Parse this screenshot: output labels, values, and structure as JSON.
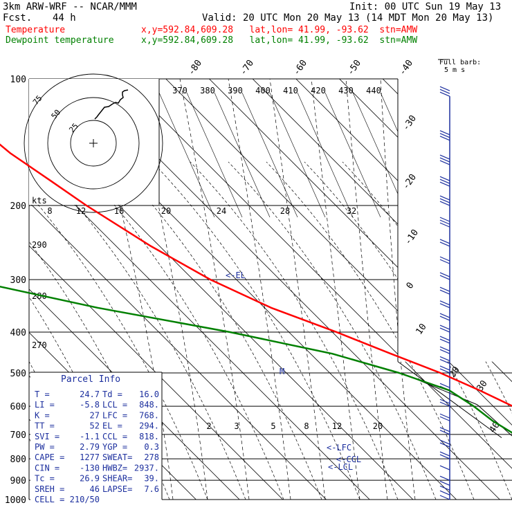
{
  "header": {
    "model": "3km ARW-WRF -- NCAR/MMM",
    "init": "Init: 00 UTC Sun 19 May 13",
    "fcst_label": "Fcst.",
    "fcst_value": "44 h",
    "valid": "Valid: 20 UTC Mon 20 May 13 (14 MDT Mon 20 May 13)",
    "temp_label": "Temperature",
    "temp_info": "x,y=592.84,609.28   lat,lon= 41.99, -93.62  stn=AMW",
    "dew_label": "Dewpoint temperature",
    "dew_info": "x,y=592.84,609.28   lat,lon= 41.99, -93.62  stn=AMW"
  },
  "colors": {
    "temperature": "#ff0000",
    "dewpoint": "#008000",
    "header_red": "#ff0000",
    "header_green": "#008000",
    "parcel": "#1c2f9e",
    "barbs": "#1c2f9e",
    "grid": "#000000"
  },
  "barb_title": "Full barb:",
  "barb_unit": "5 m s",
  "parcel_info": {
    "title": "Parcel Info",
    "rows": [
      [
        "T   =",
        "24.7",
        "Td =",
        "16.0"
      ],
      [
        "LI  =",
        "-5.8",
        "LCL =",
        "848."
      ],
      [
        "K   =",
        "27",
        "LFC =",
        "768."
      ],
      [
        "TT  =",
        "52",
        "EL  =",
        "294."
      ],
      [
        "SVI =",
        "-1.1",
        "CCL =",
        "818."
      ],
      [
        "PW  =",
        "2.79",
        "YGP =",
        "0.3"
      ],
      [
        "CAPE =",
        "1277",
        "SWEAT=",
        "278"
      ],
      [
        "CIN  =",
        "-130",
        "HWBZ=",
        "2937."
      ],
      [
        "Tc   =",
        "26.9",
        "SHEAR=",
        "39."
      ],
      [
        "SREH =",
        "46",
        "LAPSE=",
        "7.6"
      ],
      [
        "CELL =",
        "210/50",
        "",
        ""
      ]
    ]
  },
  "markers": {
    "el": "<-EL",
    "lfc": "<-LFC",
    "ccl": "<-CCL",
    "lcl": "<-LCL",
    "m": "M"
  },
  "hodograph": {
    "unit": "kts",
    "rings": [
      "25",
      "50",
      "75"
    ]
  },
  "chart_data": {
    "type": "line",
    "xlabel": "",
    "ylabel": "",
    "pressure_ticks": [
      100,
      200,
      300,
      400,
      500,
      600,
      700,
      800,
      900,
      1000
    ],
    "pressure_labels": [
      "100",
      "200",
      "300",
      "400",
      "500",
      "600",
      "700",
      "800",
      "900",
      "1000"
    ],
    "isotherm_labels_top": [
      "-80",
      "-70",
      "-60",
      "-50",
      "-40"
    ],
    "isotherm_labels_right": [
      "-30",
      "-20",
      "-10",
      "0",
      "10",
      "20",
      "30",
      "40"
    ],
    "theta_e_labels": [
      "370",
      "380",
      "390",
      "400",
      "410",
      "420",
      "430",
      "440"
    ],
    "dry_adiabat_labels": [
      "290",
      "280",
      "270"
    ],
    "mixing_ratio_labels_upper": [
      "8",
      "12",
      "16",
      "20",
      "24",
      "28",
      "32"
    ],
    "mixing_ratio_labels_lower": [
      "2",
      "3",
      "5",
      "8",
      "12",
      "20"
    ],
    "series": [
      {
        "name": "Temperature",
        "pressure": [
          100,
          125,
          150,
          175,
          200,
          250,
          300,
          350,
          400,
          450,
          500,
          550,
          600,
          650,
          700,
          750,
          800,
          850,
          900,
          960
        ],
        "temp": [
          -66.5,
          -64.5,
          -63.0,
          -60.0,
          -57.5,
          -52.0,
          -46.0,
          -38.5,
          -29.0,
          -21.5,
          -14.5,
          -9.5,
          -5.5,
          -1.5,
          2.5,
          7.0,
          11.5,
          15.5,
          19.5,
          25.0
        ]
      },
      {
        "name": "Dewpoint temperature",
        "pressure": [
          100,
          125,
          150,
          175,
          200,
          220,
          250,
          300,
          350,
          400,
          450,
          500,
          550,
          600,
          650,
          700,
          750,
          800,
          850,
          880,
          900,
          930
        ],
        "temp": [
          -100.0,
          -100.0,
          -103.5,
          -104.0,
          -101.5,
          -99.5,
          -100.0,
          -102.0,
          -78.5,
          -53.5,
          -35.0,
          -24.0,
          -16.5,
          -14.5,
          -13.5,
          -11.5,
          -6.0,
          4.0,
          12.0,
          15.5,
          16.0,
          17.0
        ]
      }
    ],
    "hodograph_trace_uv": [
      [
        0,
        0
      ],
      [
        3,
        3
      ],
      [
        6,
        7
      ],
      [
        10,
        12
      ],
      [
        14,
        17
      ],
      [
        20,
        18
      ],
      [
        26,
        22
      ],
      [
        30,
        24
      ],
      [
        34,
        23
      ],
      [
        37,
        28
      ],
      [
        41,
        31
      ],
      [
        40,
        35
      ],
      [
        40,
        39
      ],
      [
        43,
        41
      ],
      [
        48,
        42
      ]
    ],
    "wind_barbs_pressure": [
      110,
      140,
      160,
      180,
      200,
      225,
      250,
      275,
      300,
      325,
      350,
      375,
      400,
      425,
      450,
      475,
      500,
      550,
      600,
      650,
      700,
      750,
      800,
      850,
      900,
      925,
      950,
      975,
      1000
    ]
  }
}
